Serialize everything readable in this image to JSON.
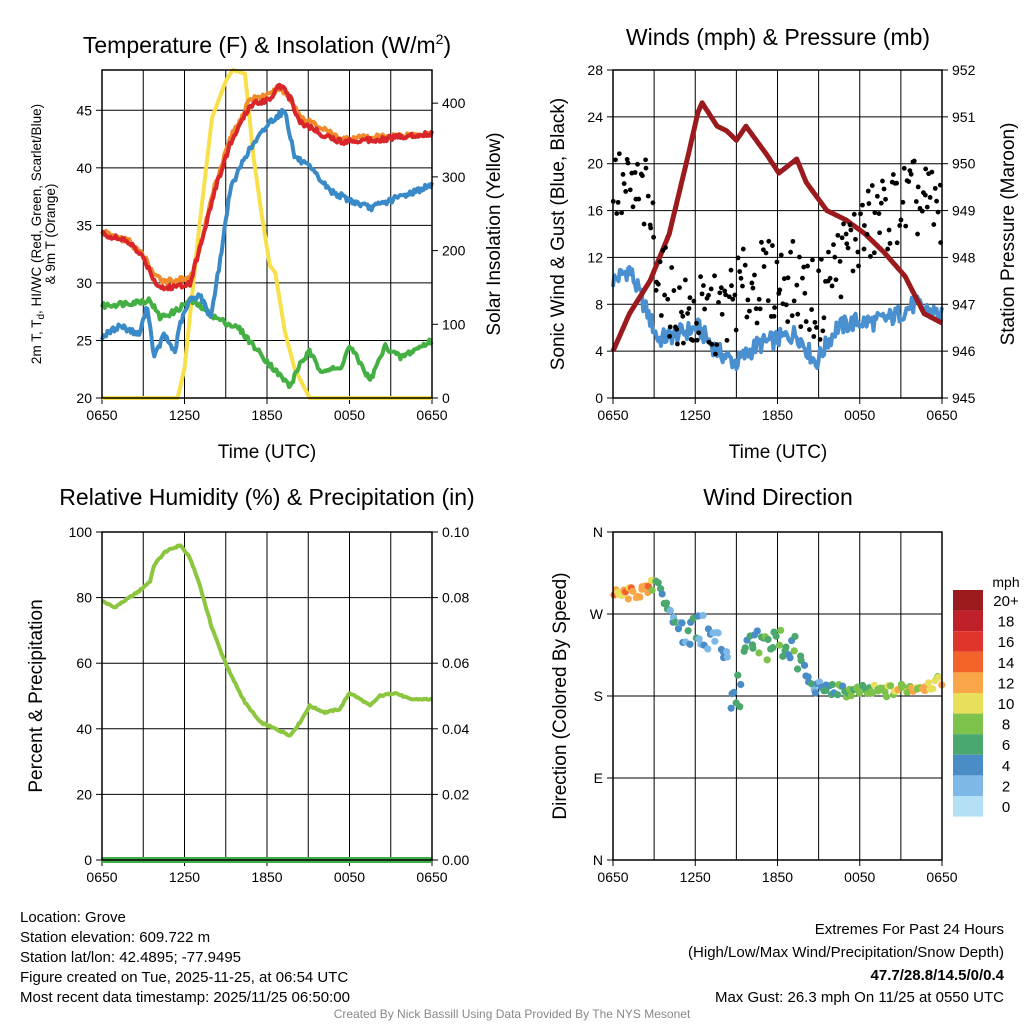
{
  "x_ticks": [
    "0650",
    "1250",
    "1850",
    "0050",
    "0650"
  ],
  "chart_data": [
    {
      "type": "line",
      "title": "Temperature (F) & Insolation (W/m",
      "title_sup": "2",
      "title_end": ")",
      "ylabel_line1": "2m T, T",
      "ylabel_sub": "d",
      "ylabel_line1_end": ", HI/WC (Red, Green, Scarlet/Blue)",
      "ylabel_line2": "& 9m T (Orange)",
      "y2label": "Solar Insolation (Yellow)",
      "xlabel": "Time (UTC)",
      "ylim": [
        20,
        48.5
      ],
      "y2lim": [
        0,
        445
      ],
      "yticks": [
        "20",
        "25",
        "30",
        "35",
        "40",
        "45"
      ],
      "y2ticks": [
        "0",
        "100",
        "200",
        "300",
        "400"
      ],
      "series": [
        {
          "name": "Solar Insolation",
          "axis": "right",
          "color": "#f8e04a",
          "points": [
            [
              0,
              0
            ],
            [
              5.5,
              0
            ],
            [
              6,
              40
            ],
            [
              7,
              220
            ],
            [
              8,
              380
            ],
            [
              9,
              430
            ],
            [
              9.5,
              445
            ],
            [
              10.4,
              440
            ],
            [
              11,
              330
            ],
            [
              11.6,
              250
            ],
            [
              12.2,
              180
            ],
            [
              12.6,
              170
            ],
            [
              13.3,
              90
            ],
            [
              14,
              40
            ],
            [
              15.1,
              0
            ],
            [
              24,
              0
            ]
          ]
        },
        {
          "name": "HI/WC",
          "color": "#44b044",
          "points": [
            [
              0,
              28
            ],
            [
              3.5,
              28.5
            ],
            [
              4.2,
              27
            ],
            [
              5.3,
              27.5
            ],
            [
              6.4,
              28.5
            ],
            [
              7.1,
              28
            ],
            [
              8.2,
              27
            ],
            [
              10,
              26
            ],
            [
              11.4,
              24
            ],
            [
              12.9,
              22
            ],
            [
              13.7,
              21
            ],
            [
              14.4,
              23
            ],
            [
              15.1,
              24
            ],
            [
              15.8,
              22.5
            ],
            [
              17.3,
              22.5
            ],
            [
              18,
              24.5
            ],
            [
              18.8,
              23
            ],
            [
              19.5,
              21.5
            ],
            [
              20.6,
              24.5
            ],
            [
              21.7,
              23.5
            ],
            [
              24,
              25
            ]
          ]
        },
        {
          "name": "2m Td",
          "color": "#3a8ac8",
          "points": [
            [
              0,
              25.3
            ],
            [
              1.3,
              26.3
            ],
            [
              2.7,
              25.5
            ],
            [
              3.3,
              28
            ],
            [
              3.8,
              23.5
            ],
            [
              4.5,
              25.5
            ],
            [
              5.3,
              24
            ],
            [
              5.7,
              26.5
            ],
            [
              6.4,
              28.5
            ],
            [
              7.1,
              29
            ],
            [
              7.9,
              27
            ],
            [
              8.6,
              32
            ],
            [
              9.3,
              38
            ],
            [
              10.4,
              41
            ],
            [
              12.2,
              44
            ],
            [
              13.3,
              45
            ],
            [
              14,
              41
            ],
            [
              15.1,
              40
            ],
            [
              16.6,
              38
            ],
            [
              18,
              37.2
            ],
            [
              19.5,
              36.5
            ],
            [
              21.7,
              37.5
            ],
            [
              24,
              38.5
            ]
          ]
        },
        {
          "name": "9m T",
          "color": "#f08a2a",
          "points": [
            [
              0,
              34.4
            ],
            [
              2,
              33.6
            ],
            [
              3.1,
              32.2
            ],
            [
              3.9,
              30.5
            ],
            [
              4.6,
              30.2
            ],
            [
              6.4,
              30.3
            ],
            [
              7.1,
              33
            ],
            [
              8.2,
              38.5
            ],
            [
              9.3,
              42.5
            ],
            [
              10.8,
              46
            ],
            [
              12.2,
              46.3
            ],
            [
              12.9,
              47
            ],
            [
              13.7,
              46
            ],
            [
              14.4,
              44.5
            ],
            [
              15.9,
              43.5
            ],
            [
              17.3,
              42.5
            ],
            [
              20.2,
              42.7
            ],
            [
              24,
              43
            ]
          ]
        },
        {
          "name": "2m T",
          "color": "#d8262a",
          "points": [
            [
              0,
              34.3
            ],
            [
              2,
              33.5
            ],
            [
              3.1,
              32
            ],
            [
              3.9,
              30
            ],
            [
              4.6,
              29.5
            ],
            [
              6.4,
              30
            ],
            [
              7.1,
              33
            ],
            [
              8.2,
              38
            ],
            [
              9.3,
              42
            ],
            [
              10.8,
              45.5
            ],
            [
              12.2,
              46
            ],
            [
              12.9,
              47.3
            ],
            [
              13.7,
              46
            ],
            [
              14.4,
              44
            ],
            [
              15.9,
              43
            ],
            [
              17.3,
              42.3
            ],
            [
              20.2,
              42.5
            ],
            [
              24,
              43
            ]
          ]
        }
      ]
    },
    {
      "type": "line",
      "title": "Winds (mph) & Pressure (mb)",
      "ylabel": "Sonic Wind & Gust (Blue, Black)",
      "y2label": "Station Pressure (Maroon)",
      "xlabel": "Time (UTC)",
      "ylim": [
        0,
        28
      ],
      "y2lim": [
        945,
        952
      ],
      "yticks": [
        "0",
        "4",
        "8",
        "12",
        "16",
        "20",
        "24",
        "28"
      ],
      "y2ticks": [
        "945",
        "946",
        "947",
        "948",
        "949",
        "950",
        "951",
        "952"
      ],
      "series": [
        {
          "name": "Sonic Wind",
          "color": "#4a90d0",
          "points": [
            [
              0,
              10
            ],
            [
              1.2,
              11
            ],
            [
              1.9,
              9
            ],
            [
              3.3,
              5
            ],
            [
              4.8,
              5.5
            ],
            [
              6.2,
              6
            ],
            [
              7.6,
              4
            ],
            [
              9,
              3
            ],
            [
              10.5,
              4.5
            ],
            [
              11.9,
              5
            ],
            [
              13.4,
              5.5
            ],
            [
              14.8,
              3
            ],
            [
              16.3,
              6
            ],
            [
              17.7,
              6.5
            ],
            [
              19.1,
              6.5
            ],
            [
              20.6,
              7
            ],
            [
              22,
              8
            ],
            [
              24,
              7
            ]
          ]
        },
        {
          "name": "Station Pressure",
          "axis": "right",
          "color": "#9b1a1e",
          "points": [
            [
              0,
              946
            ],
            [
              1.2,
              946.8
            ],
            [
              2.7,
              947.5
            ],
            [
              4.1,
              948.5
            ],
            [
              5.5,
              950.2
            ],
            [
              6.2,
              951.1
            ],
            [
              6.5,
              951.3
            ],
            [
              7.6,
              950.8
            ],
            [
              8.3,
              950.7
            ],
            [
              9,
              950.5
            ],
            [
              9.7,
              950.8
            ],
            [
              11.2,
              950.2
            ],
            [
              12.1,
              949.8
            ],
            [
              13.4,
              950.1
            ],
            [
              14.1,
              949.6
            ],
            [
              15.6,
              949
            ],
            [
              17,
              948.8
            ],
            [
              18.4,
              948.5
            ],
            [
              19.8,
              948.1
            ],
            [
              21.3,
              947.6
            ],
            [
              22.7,
              946.8
            ],
            [
              24,
              946.6
            ]
          ]
        },
        {
          "name": "Gust",
          "type": "scatter",
          "color": "#000000",
          "trend": [
            [
              0,
              18
            ],
            [
              2.5,
              17
            ],
            [
              3.5,
              10
            ],
            [
              5,
              7
            ],
            [
              8,
              7
            ],
            [
              9,
              9
            ],
            [
              11,
              10
            ],
            [
              13,
              10
            ],
            [
              15,
              8
            ],
            [
              16,
              11
            ],
            [
              18,
              14
            ],
            [
              20,
              16
            ],
            [
              22,
              17
            ],
            [
              24,
              16
            ]
          ]
        }
      ]
    },
    {
      "type": "line",
      "title": "Relative Humidity (%) & Precipitation (in)",
      "ylabel": "Percent & Precipitation",
      "ylim": [
        0,
        100
      ],
      "y2lim": [
        0,
        0.1
      ],
      "yticks": [
        "0",
        "20",
        "40",
        "60",
        "80",
        "100"
      ],
      "y2ticks": [
        "0.00",
        "0.02",
        "0.04",
        "0.06",
        "0.08",
        "0.10"
      ],
      "series": [
        {
          "name": "Relative Humidity",
          "color": "#8cc63f",
          "points": [
            [
              0,
              79
            ],
            [
              0.9,
              77
            ],
            [
              2,
              80
            ],
            [
              2.7,
              82
            ],
            [
              3.5,
              85
            ],
            [
              3.8,
              90
            ],
            [
              4.6,
              94
            ],
            [
              5.7,
              96
            ],
            [
              6.4,
              92
            ],
            [
              7.1,
              84
            ],
            [
              7.9,
              72
            ],
            [
              8.6,
              64
            ],
            [
              9.3,
              57
            ],
            [
              10.4,
              48
            ],
            [
              11.5,
              42
            ],
            [
              12.6,
              40
            ],
            [
              13.7,
              38
            ],
            [
              14.4,
              42
            ],
            [
              15.1,
              47
            ],
            [
              16.2,
              45
            ],
            [
              17.3,
              46
            ],
            [
              18,
              51
            ],
            [
              18.8,
              49
            ],
            [
              19.5,
              47
            ],
            [
              20.2,
              50
            ],
            [
              21.3,
              51
            ],
            [
              22.4,
              49
            ],
            [
              24,
              49
            ]
          ]
        },
        {
          "name": "Precipitation",
          "axis": "right",
          "color": "#3fae49",
          "points": [
            [
              0,
              0
            ],
            [
              24,
              0
            ]
          ]
        }
      ]
    },
    {
      "type": "scatter",
      "title": "Wind Direction",
      "ylabel": "Direction (Colored By Speed)",
      "ylim": [
        0,
        360
      ],
      "yticks": [
        "N",
        "E",
        "S",
        "W",
        "N"
      ],
      "colorbar_title": "mph",
      "colorbar_labels": [
        "20+",
        "18",
        "16",
        "14",
        "12",
        "10",
        "8",
        "6",
        "4",
        "2",
        "0"
      ],
      "colorbar_colors": [
        "#9b1a1e",
        "#c0202a",
        "#e0352b",
        "#f26329",
        "#f9a648",
        "#e8e05a",
        "#7dc24b",
        "#4aa86e",
        "#4a8cc6",
        "#7db8e6",
        "#b4e0f6"
      ],
      "direction_trend": [
        [
          0,
          290
        ],
        [
          2.5,
          295
        ],
        [
          3.3,
          310
        ],
        [
          4,
          270
        ],
        [
          5,
          255
        ],
        [
          6.5,
          250
        ],
        [
          8,
          235
        ],
        [
          9,
          220
        ],
        [
          10,
          230
        ],
        [
          12,
          240
        ],
        [
          13,
          235
        ],
        [
          14.5,
          190
        ],
        [
          17,
          185
        ],
        [
          20,
          185
        ],
        [
          24,
          195
        ]
      ],
      "speed_trend": [
        [
          0,
          12
        ],
        [
          2.5,
          12
        ],
        [
          3.3,
          6
        ],
        [
          4,
          4
        ],
        [
          6,
          4
        ],
        [
          8,
          3
        ],
        [
          9,
          4
        ],
        [
          11,
          6
        ],
        [
          13,
          6
        ],
        [
          14.5,
          4
        ],
        [
          16,
          6
        ],
        [
          18,
          8
        ],
        [
          20,
          9
        ],
        [
          22,
          10
        ],
        [
          24,
          10
        ]
      ]
    }
  ],
  "footer": {
    "location": "Location: Grove",
    "elevation": "Station elevation: 609.722 m",
    "latlon": "Station lat/lon: 42.4895; -77.9495",
    "created": "Figure created on Tue, 2025-11-25, at 06:54 UTC",
    "recent": "Most recent data timestamp: 2025/11/25 06:50:00",
    "extremes_title": "Extremes For Past 24 Hours",
    "extremes_sub": "(High/Low/Max Wind/Precipitation/Snow Depth)",
    "extremes_values": "47.7/28.8/14.5/0/0.4",
    "max_gust": "Max Gust: 26.3 mph On 11/25 at 0550 UTC",
    "credit": "Created By Nick Bassill Using Data Provided By The NYS Mesonet"
  },
  "colors": {
    "extremes": "#d0262a",
    "credit": "#888888"
  }
}
